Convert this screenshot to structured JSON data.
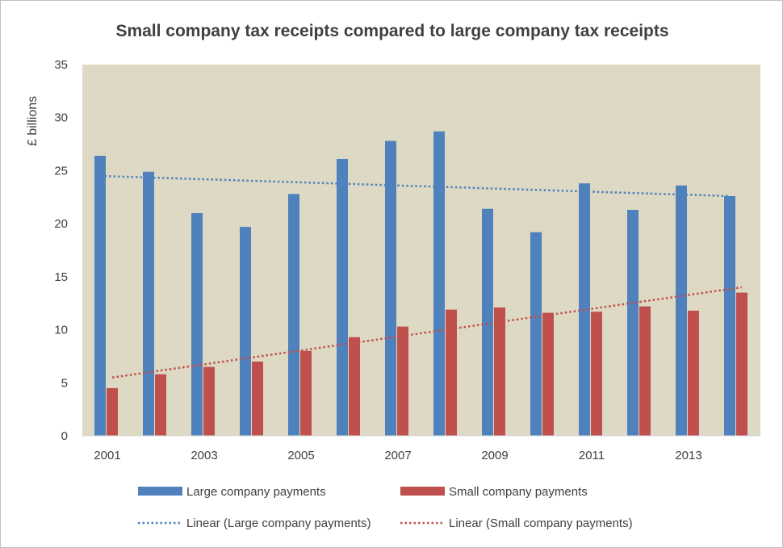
{
  "chart_data": {
    "type": "bar",
    "title": "Small company tax receipts compared to large company tax receipts",
    "ylabel": "£ billions",
    "xlabel": "",
    "ylim": [
      0,
      35
    ],
    "yticks": [
      0,
      5,
      10,
      15,
      20,
      25,
      30,
      35
    ],
    "categories": [
      "2001",
      "2002",
      "2003",
      "2004",
      "2005",
      "2006",
      "2007",
      "2008",
      "2009",
      "2010",
      "2011",
      "2012",
      "2013",
      "2014"
    ],
    "x_tick_labels": [
      "2001",
      "",
      "2003",
      "",
      "2005",
      "",
      "2007",
      "",
      "2009",
      "",
      "2011",
      "",
      "2013",
      ""
    ],
    "grid": false,
    "plot_background": "#ddd9c4",
    "legend_position": "bottom",
    "series": [
      {
        "name": "Large company payments",
        "color": "#4f81bd",
        "values": [
          26.4,
          24.9,
          21.0,
          19.7,
          22.8,
          26.1,
          27.8,
          28.7,
          21.4,
          19.2,
          23.8,
          21.3,
          23.6,
          22.6
        ]
      },
      {
        "name": "Small company payments",
        "color": "#c0504d",
        "values": [
          4.5,
          5.8,
          6.5,
          7.0,
          8.0,
          9.3,
          10.3,
          11.9,
          12.1,
          11.6,
          11.7,
          12.2,
          11.8,
          13.5
        ]
      }
    ],
    "trendlines": [
      {
        "name": "Linear (Large company payments)",
        "color": "#4f81bd",
        "style": "dotted",
        "start": 24.5,
        "end": 22.6
      },
      {
        "name": "Linear (Small company payments)",
        "color": "#c0504d",
        "style": "dotted",
        "start": 5.5,
        "end": 14.0
      }
    ]
  }
}
